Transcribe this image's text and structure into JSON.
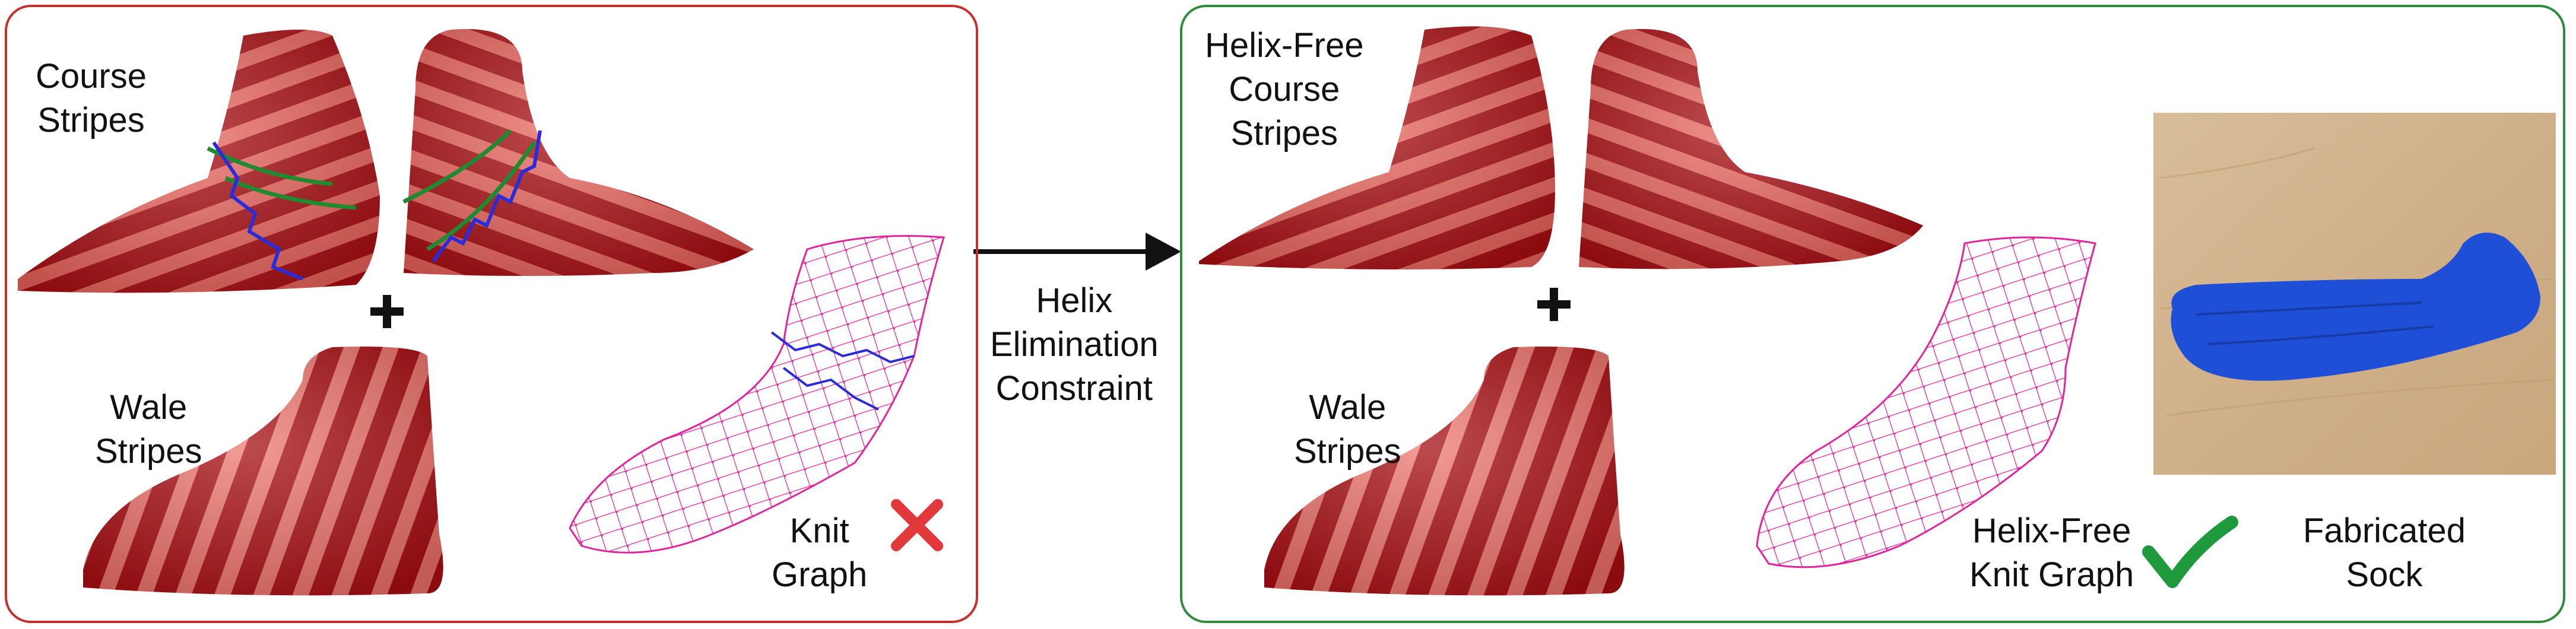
{
  "left_panel": {
    "course_label": [
      "Course",
      "Stripes"
    ],
    "wale_label": [
      "Wale",
      "Stripes"
    ],
    "knit_graph_label": [
      "Knit",
      "Graph"
    ],
    "status_icon": "cross-icon",
    "status_color": "#e0383b"
  },
  "arrow_label": [
    "Helix",
    "Elimination",
    "Constraint"
  ],
  "right_panel": {
    "course_label": [
      "Helix-Free",
      "Course",
      "Stripes"
    ],
    "wale_label": [
      "Wale",
      "Stripes"
    ],
    "knit_graph_label": [
      "Helix-Free",
      "Knit Graph"
    ],
    "status_icon": "checkmark-icon",
    "status_color": "#1e9a3c",
    "photo_label": [
      "Fabricated",
      "Sock"
    ]
  },
  "colors": {
    "left_border": "#c4302b",
    "right_border": "#2e8b3e",
    "stripe_dark": "#a50f14",
    "stripe_light": "#e85a55",
    "knit_graph": "#e0249c",
    "helix_edges": "#2b2bd8",
    "sock": "#1f4fd6"
  }
}
